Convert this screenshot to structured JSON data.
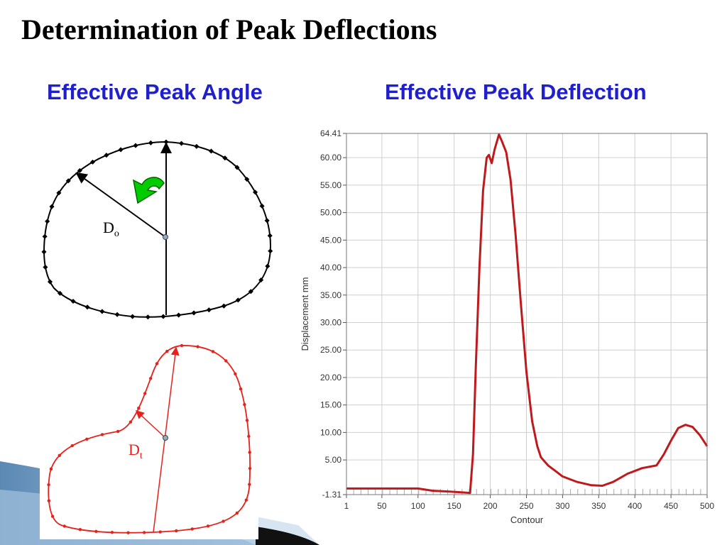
{
  "slide": {
    "title": "Determination of Peak Deflections",
    "left_heading": "Effective Peak Angle",
    "right_heading": "Effective Peak Deflection"
  },
  "diagram": {
    "upper_label_main": "D",
    "upper_label_sub": "o",
    "lower_label_main": "D",
    "lower_label_sub": "t",
    "upper_color": "#000000",
    "lower_color": "#e8211a",
    "arrow_color": "#00cc00"
  },
  "chart_data": {
    "type": "line",
    "xlabel": "Contour",
    "ylabel": "Displacement mm",
    "xlim": [
      1,
      500
    ],
    "ylim": [
      -1.31,
      64.41
    ],
    "x_ticks": [
      1,
      50,
      100,
      150,
      200,
      250,
      300,
      350,
      400,
      450,
      500
    ],
    "y_ticks": [
      -1.31,
      5.0,
      10.0,
      15.0,
      20.0,
      25.0,
      30.0,
      35.0,
      40.0,
      45.0,
      50.0,
      55.0,
      60.0,
      64.41
    ],
    "y_tick_labels": [
      "-1.31",
      "5.00",
      "10.00",
      "15.00",
      "20.00",
      "25.00",
      "30.00",
      "35.00",
      "40.00",
      "45.00",
      "50.00",
      "55.00",
      "60.00",
      "64.41"
    ],
    "grid": true,
    "line_color": "#c0191c",
    "x": [
      1,
      50,
      100,
      120,
      150,
      172,
      176,
      180,
      185,
      190,
      195,
      198,
      202,
      206,
      212,
      216,
      222,
      228,
      235,
      242,
      250,
      258,
      265,
      270,
      280,
      290,
      300,
      320,
      340,
      355,
      370,
      390,
      410,
      430,
      440,
      450,
      460,
      470,
      480,
      490,
      500
    ],
    "y": [
      -0.2,
      -0.2,
      -0.2,
      -0.6,
      -0.8,
      -1.0,
      6.0,
      22.0,
      40.0,
      54.0,
      60.0,
      60.5,
      59.0,
      61.5,
      64.2,
      63.0,
      61.0,
      56.0,
      46.0,
      34.0,
      21.0,
      12.0,
      7.5,
      5.5,
      4.0,
      3.0,
      2.0,
      1.0,
      0.4,
      0.3,
      1.0,
      2.5,
      3.5,
      4.0,
      6.0,
      8.5,
      10.8,
      11.4,
      11.0,
      9.5,
      7.5
    ]
  }
}
